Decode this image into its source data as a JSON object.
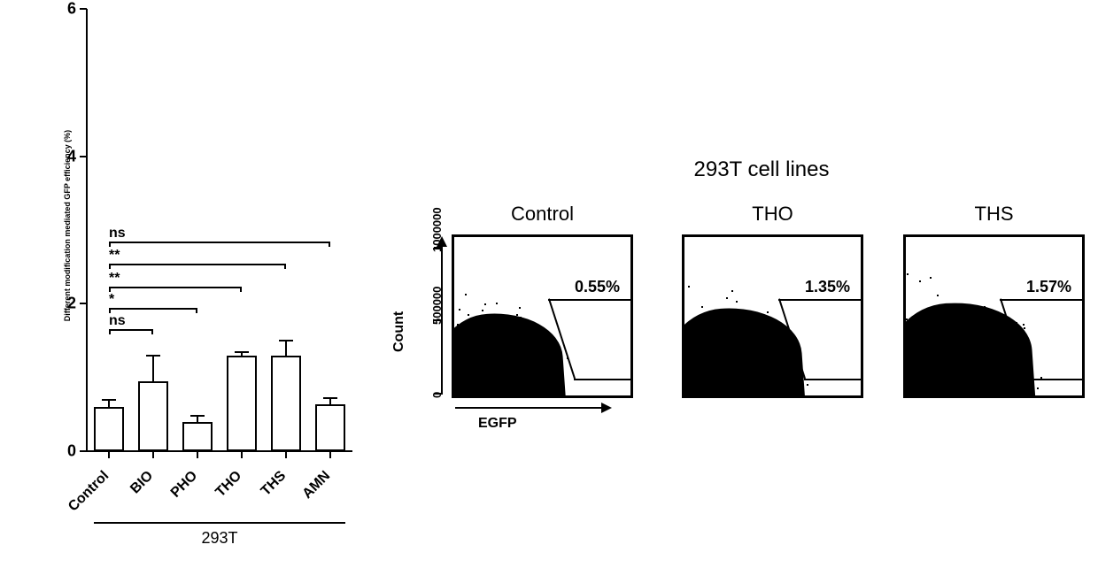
{
  "barchart": {
    "type": "bar",
    "ylabel": "Different modification mediated GFP efficiency (%)",
    "ylim": [
      0,
      6
    ],
    "yticks": [
      0,
      2,
      4,
      6
    ],
    "categories": [
      "Control",
      "BIO",
      "PHO",
      "THO",
      "THS",
      "AMN"
    ],
    "values": [
      0.6,
      0.95,
      0.4,
      1.3,
      1.3,
      0.64
    ],
    "errors": [
      0.1,
      0.35,
      0.08,
      0.05,
      0.2,
      0.08
    ],
    "bar_color": "#ffffff",
    "bar_border_color": "#000000",
    "bar_border_width": 2,
    "bar_width": 0.68,
    "group_label": "293T",
    "sig": [
      {
        "from": 0,
        "to": 5,
        "label": "ns",
        "y": 2.85
      },
      {
        "from": 0,
        "to": 4,
        "label": "**",
        "y": 2.55
      },
      {
        "from": 0,
        "to": 3,
        "label": "**",
        "y": 2.23
      },
      {
        "from": 0,
        "to": 2,
        "label": "*",
        "y": 1.94
      },
      {
        "from": 0,
        "to": 1,
        "label": "ns",
        "y": 1.66
      }
    ],
    "label_fontsize": 16,
    "tick_fontsize": 18,
    "ylabel_fontsize": 9
  },
  "facs": {
    "title": "293T cell lines",
    "y_axis_label": "Count",
    "x_axis_label": "EGFP",
    "y_ticks": [
      "0",
      "500000",
      "1000000"
    ],
    "panels": [
      {
        "name": "Control",
        "pct": "0.55%"
      },
      {
        "name": "THO",
        "pct": "1.35%"
      },
      {
        "name": "THS",
        "pct": "1.57%"
      }
    ],
    "pct_fontsize": 18,
    "subtitle_fontsize": 22,
    "title_fontsize": 24,
    "panel_border_color": "#000000",
    "panel_border_width": 3,
    "blob_color": "#000000"
  }
}
